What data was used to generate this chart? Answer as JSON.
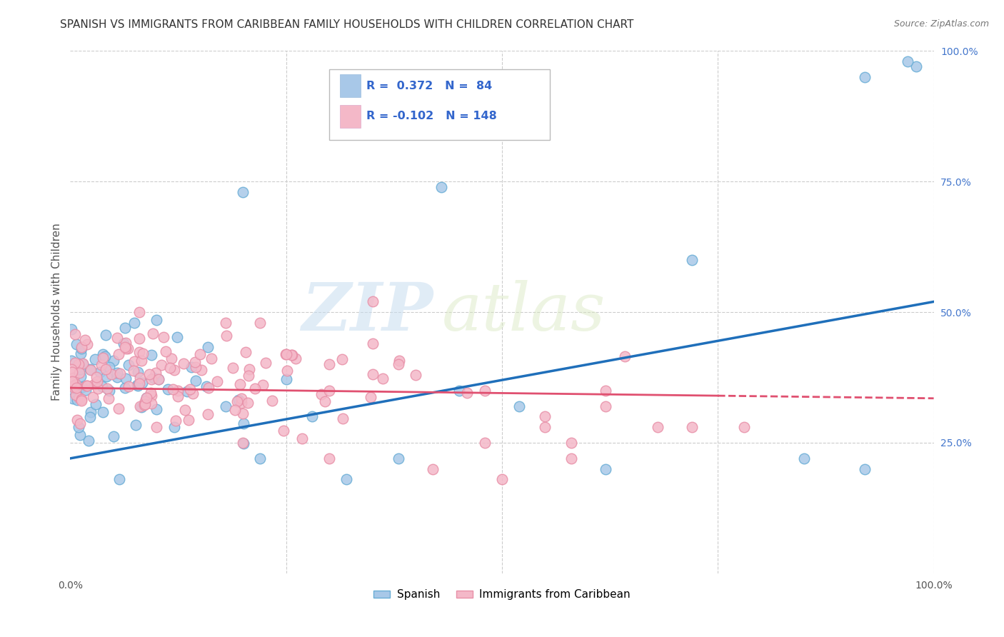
{
  "title": "SPANISH VS IMMIGRANTS FROM CARIBBEAN FAMILY HOUSEHOLDS WITH CHILDREN CORRELATION CHART",
  "source": "Source: ZipAtlas.com",
  "ylabel": "Family Households with Children",
  "xlim": [
    0.0,
    1.0
  ],
  "ylim": [
    0.0,
    1.0
  ],
  "legend_labels": [
    "Spanish",
    "Immigrants from Caribbean"
  ],
  "R1": 0.372,
  "N1": 84,
  "R2": -0.102,
  "N2": 148,
  "blue_color": "#a8c8e8",
  "blue_edge_color": "#6aaed6",
  "pink_color": "#f4b8c8",
  "pink_edge_color": "#e890a8",
  "blue_line_color": "#1f6fba",
  "pink_line_color": "#e05070",
  "background_color": "#ffffff",
  "grid_color": "#cccccc",
  "watermark_zip": "ZIP",
  "watermark_atlas": "atlas",
  "title_fontsize": 11,
  "axis_label_fontsize": 11,
  "tick_fontsize": 10,
  "blue_line_y0": 0.22,
  "blue_line_y1": 0.52,
  "pink_line_y0": 0.355,
  "pink_line_y1": 0.335
}
